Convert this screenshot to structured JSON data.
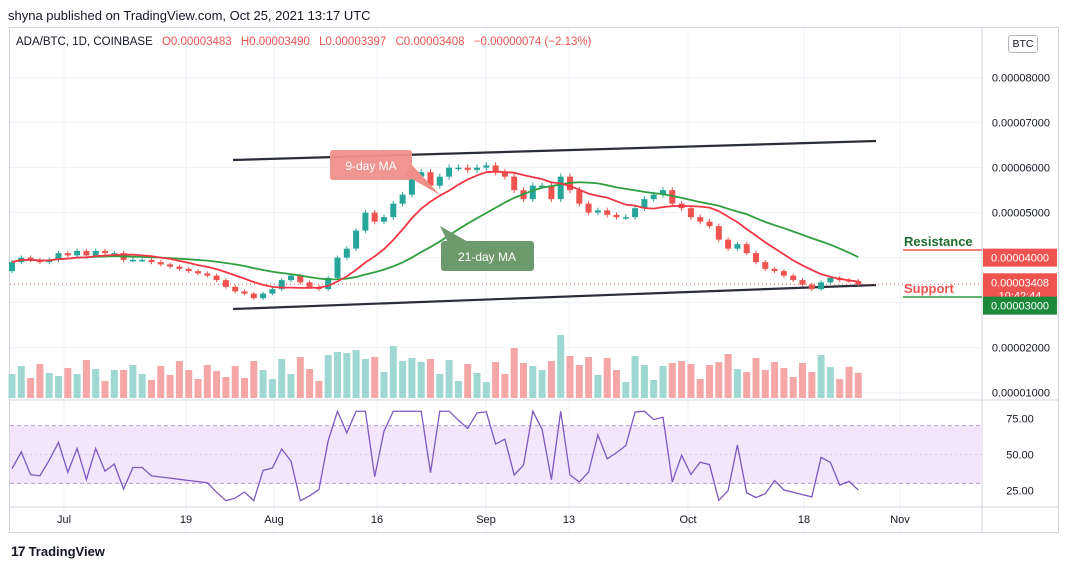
{
  "header": {
    "publisher": "shyna published on TradingView.com, Oct 25, 2021 13:17 UTC"
  },
  "legend": {
    "symbol": "ADA/BTC, 1D, COINBASE",
    "open": "O0.00003483",
    "high": "H0.00003490",
    "low": "L0.00003397",
    "close": "C0.00003408",
    "change": "−0.00000074 (−2.13%)"
  },
  "currency_badge": "BTC",
  "annotations": {
    "ma9": "9-day MA",
    "ma21": "21-day MA",
    "resistance": "Resistance",
    "support": "Support"
  },
  "price_axis": {
    "ticks": [
      "0.00008000",
      "0.00007000",
      "0.00006000",
      "0.00005000",
      "0.00004000",
      "0.00002000",
      "0.00001000"
    ],
    "resistance_marker": "0.00004000",
    "last_price": "0.00003408",
    "countdown": "10:42:44",
    "support_marker": "0.00003000"
  },
  "rsi_axis": {
    "ticks": [
      "75.00",
      "50.00",
      "25.00"
    ]
  },
  "time_axis": {
    "labels": [
      "Jul",
      "19",
      "Aug",
      "16",
      "Sep",
      "13",
      "Oct",
      "18",
      "Nov"
    ]
  },
  "colors": {
    "up": "#26a69a",
    "down": "#ef5350",
    "ma9": "#f23645",
    "ma21": "#2e9e3e",
    "rsi": "#7e57c2",
    "rsi_band": "#f3e5fb",
    "resistance": "#ef5350",
    "support": "#2e9e3e"
  },
  "footer": {
    "brand": "TradingView"
  },
  "chart_data": {
    "type": "candlestick",
    "interval": "1D",
    "x_range": [
      "2021-06-24",
      "2021-11-05"
    ],
    "price_range": [
      9e-06,
      8.65e-05
    ],
    "rsi_range": [
      10,
      85
    ],
    "candles": [
      [
        3.7,
        3.9
      ],
      [
        3.9,
        4.0
      ],
      [
        4.0,
        3.95
      ],
      [
        3.95,
        3.9
      ],
      [
        3.9,
        3.95
      ],
      [
        3.95,
        4.1
      ],
      [
        4.1,
        4.05
      ],
      [
        4.05,
        4.15
      ],
      [
        4.15,
        4.05
      ],
      [
        4.05,
        4.15
      ],
      [
        4.15,
        4.1
      ],
      [
        4.1,
        4.1
      ],
      [
        4.1,
        3.95
      ],
      [
        3.95,
        3.95
      ],
      [
        3.95,
        3.95
      ],
      [
        3.95,
        3.9
      ],
      [
        3.9,
        3.85
      ],
      [
        3.85,
        3.8
      ],
      [
        3.8,
        3.75
      ],
      [
        3.75,
        3.7
      ],
      [
        3.7,
        3.65
      ],
      [
        3.65,
        3.6
      ],
      [
        3.6,
        3.5
      ],
      [
        3.5,
        3.35
      ],
      [
        3.35,
        3.25
      ],
      [
        3.25,
        3.2
      ],
      [
        3.2,
        3.1
      ],
      [
        3.1,
        3.2
      ],
      [
        3.2,
        3.3
      ],
      [
        3.3,
        3.5
      ],
      [
        3.5,
        3.6
      ],
      [
        3.6,
        3.45
      ],
      [
        3.45,
        3.35
      ],
      [
        3.35,
        3.3
      ],
      [
        3.3,
        3.55
      ],
      [
        3.55,
        4.0
      ],
      [
        4.0,
        4.2
      ],
      [
        4.2,
        4.6
      ],
      [
        4.6,
        5.0
      ],
      [
        5.0,
        4.8
      ],
      [
        4.8,
        4.9
      ],
      [
        4.9,
        5.2
      ],
      [
        5.2,
        5.4
      ],
      [
        5.4,
        5.8
      ],
      [
        5.8,
        5.9
      ],
      [
        5.9,
        5.6
      ],
      [
        5.6,
        5.8
      ],
      [
        5.8,
        6.0
      ],
      [
        6.0,
        6.0
      ],
      [
        6.0,
        5.95
      ],
      [
        5.95,
        6.0
      ],
      [
        6.0,
        6.05
      ],
      [
        6.05,
        5.9
      ],
      [
        5.9,
        5.8
      ],
      [
        5.8,
        5.5
      ],
      [
        5.5,
        5.3
      ],
      [
        5.3,
        5.6
      ],
      [
        5.6,
        5.6
      ],
      [
        5.6,
        5.3
      ],
      [
        5.3,
        5.8
      ],
      [
        5.8,
        5.5
      ],
      [
        5.5,
        5.2
      ],
      [
        5.2,
        5.0
      ],
      [
        5.0,
        5.05
      ],
      [
        5.05,
        4.95
      ],
      [
        4.95,
        4.9
      ],
      [
        4.9,
        4.9
      ],
      [
        4.9,
        5.1
      ],
      [
        5.1,
        5.3
      ],
      [
        5.3,
        5.4
      ],
      [
        5.4,
        5.5
      ],
      [
        5.5,
        5.2
      ],
      [
        5.2,
        5.1
      ],
      [
        5.1,
        4.9
      ],
      [
        4.9,
        4.8
      ],
      [
        4.8,
        4.7
      ],
      [
        4.7,
        4.4
      ],
      [
        4.4,
        4.2
      ],
      [
        4.2,
        4.3
      ],
      [
        4.3,
        4.1
      ],
      [
        4.1,
        3.9
      ],
      [
        3.9,
        3.75
      ],
      [
        3.75,
        3.7
      ],
      [
        3.7,
        3.6
      ],
      [
        3.6,
        3.5
      ],
      [
        3.5,
        3.4
      ],
      [
        3.4,
        3.3
      ],
      [
        3.3,
        3.45
      ],
      [
        3.45,
        3.55
      ],
      [
        3.55,
        3.5
      ],
      [
        3.5,
        3.48
      ],
      [
        3.48,
        3.41
      ]
    ],
    "volume_max": 9.5e-06,
    "annotated_levels": {
      "resistance": 4e-05,
      "support": 3e-05,
      "last": 3.408e-05
    }
  }
}
